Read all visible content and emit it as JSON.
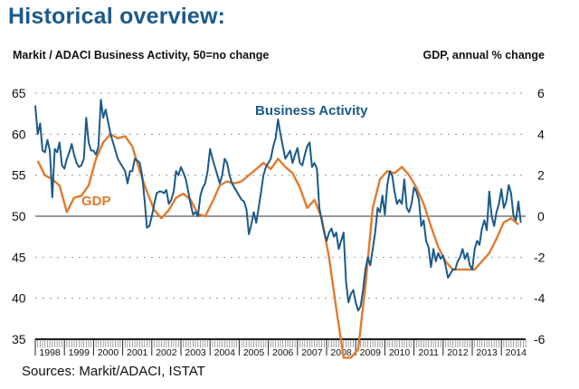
{
  "title": "Historical overview:",
  "left_header": "Markit / ADACI  Business Activity, 50=no change",
  "right_header": "GDP, annual % change",
  "source": "Sources: Markit/ADACI, ISTAT",
  "colors": {
    "business_activity": "#1c5a8a",
    "gdp": "#e07b2e",
    "title": "#1c5a8a"
  },
  "chart_data": {
    "type": "line",
    "title": "Historical overview:",
    "xlabel": "",
    "ylabel_left": "Markit / ADACI  Business Activity, 50=no change",
    "ylabel_right": "GDP, annual % change",
    "x_start": "1998-01",
    "x_categories": [
      "1998",
      "1999",
      "2000",
      "2001",
      "2002",
      "2003",
      "2004",
      "2005",
      "2006",
      "2007",
      "2008",
      "2009",
      "2010",
      "2011",
      "2012",
      "2013",
      "2014"
    ],
    "ylim_left": [
      35,
      65
    ],
    "yticks_left": [
      "65",
      "60",
      "55",
      "50",
      "45",
      "40",
      "35"
    ],
    "ylim_right": [
      -6,
      6
    ],
    "yticks_right": [
      "6",
      "4",
      "2",
      "0",
      "-2",
      "-4",
      "-6"
    ],
    "reference_line": 50,
    "grid": "horizontal dotted",
    "annotations": [
      {
        "text": "Business Activity",
        "series": "Business Activity"
      },
      {
        "text": "GDP",
        "series": "GDP"
      }
    ],
    "series": [
      {
        "name": "Business Activity",
        "axis": "left",
        "frequency": "monthly",
        "values": [
          63.5,
          60,
          61.3,
          58,
          57.8,
          59.3,
          58,
          52.3,
          58.2,
          57.8,
          59,
          56.2,
          55.8,
          57,
          57.8,
          58.8,
          57.5,
          56.5,
          56,
          56.2,
          57,
          62,
          59,
          58,
          58,
          57.5,
          58.5,
          64.2,
          62,
          63,
          61.5,
          60,
          59,
          58,
          57,
          56.5,
          56,
          55.5,
          54,
          55.5,
          55.5,
          57,
          56.8,
          56.5,
          55,
          52,
          48.6,
          48.8,
          50,
          51.5,
          52.8,
          53,
          53,
          52.8,
          53.2,
          51.5,
          52,
          53,
          55.5,
          55,
          56,
          55.3,
          54.5,
          53,
          51.5,
          50.2,
          50.5,
          50,
          52.5,
          53.5,
          54,
          55.5,
          58.2,
          57,
          56,
          55,
          54,
          55,
          57,
          56.5,
          55,
          54,
          53.5,
          53,
          52.5,
          52,
          51.8,
          50.8,
          47.8,
          49,
          50.5,
          49.2,
          51,
          53,
          55,
          56,
          56.5,
          57,
          58.5,
          59.5,
          61.8,
          60,
          58.5,
          57,
          57.5,
          58,
          56.5,
          57.5,
          58.3,
          56.5,
          56.2,
          57.5,
          58.5,
          59,
          56,
          56.5,
          55.8,
          51,
          49.5,
          48,
          47,
          48,
          48.5,
          47.5,
          48,
          46,
          47,
          48,
          42,
          39.5,
          40.5,
          41,
          39.5,
          38.5,
          39,
          41,
          43.5,
          45,
          44,
          46,
          48,
          51,
          50.5,
          52.5,
          50.2,
          53.8,
          55.5,
          55,
          53,
          51.5,
          52,
          51.5,
          54.5,
          51,
          50.5,
          51.5,
          53.5,
          53,
          52,
          48.8,
          49.5,
          47,
          46.2,
          43.8,
          46,
          44.5,
          45.5,
          44.8,
          45.2,
          44,
          42.5,
          43,
          43.5,
          43.5,
          44.5,
          45,
          46,
          44.8,
          45.5,
          44,
          43.5,
          46,
          47,
          46.5,
          48.5,
          49.5,
          48.3,
          53,
          50,
          48.8,
          50.5,
          51.5,
          53.3,
          51,
          51.8,
          53.8,
          52.8,
          50,
          49.5,
          51.8,
          49.2
        ]
      },
      {
        "name": "GDP",
        "axis": "right",
        "frequency": "quarterly",
        "values": [
          2.7,
          2.0,
          1.8,
          1.5,
          0.2,
          0.9,
          1.0,
          1.5,
          2.8,
          3.6,
          4.0,
          3.8,
          3.9,
          3.4,
          2.2,
          1.2,
          0.3,
          -0.1,
          0.3,
          0.9,
          1.1,
          0.8,
          0.1,
          0.0,
          0.7,
          1.5,
          1.7,
          1.6,
          1.7,
          2.0,
          2.3,
          2.6,
          2.3,
          2.8,
          2.4,
          2.1,
          1.4,
          0.4,
          0.8,
          -0.1,
          -2.0,
          -4.5,
          -6.9,
          -6.9,
          -6.5,
          -3.4,
          0.4,
          1.8,
          2.2,
          2.1,
          2.4,
          2.0,
          1.4,
          0.6,
          -0.5,
          -1.5,
          -2.2,
          -2.6,
          -2.6,
          -2.6,
          -2.6,
          -2.2,
          -1.8,
          -1.1,
          -0.3,
          -0.1,
          -0.4
        ]
      }
    ]
  }
}
